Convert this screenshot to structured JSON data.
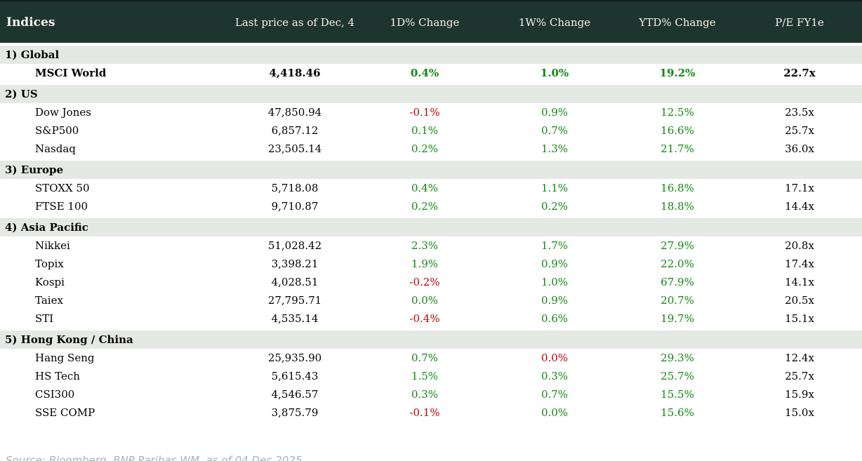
{
  "chart_data": {
    "type": "table",
    "title": "Indices",
    "columns": [
      "Indices",
      "Last price as of Dec, 4",
      "1D% Change",
      "1W% Change",
      "YTD% Change",
      "P/E FY1e"
    ],
    "groups": [
      {
        "title": "1) Global",
        "rows": [
          {
            "name": "MSCI World",
            "price": "4,418.46",
            "changes": [
              [
                "0.4%",
                "up"
              ],
              [
                "1.0%",
                "up"
              ],
              [
                "19.2%",
                "up"
              ]
            ],
            "pe": "22.7x",
            "bold": true
          }
        ]
      },
      {
        "title": "2) US",
        "rows": [
          {
            "name": "Dow Jones",
            "price": "47,850.94",
            "changes": [
              [
                "-0.1%",
                "down"
              ],
              [
                "0.9%",
                "up"
              ],
              [
                "12.5%",
                "up"
              ]
            ],
            "pe": "23.5x"
          },
          {
            "name": "S&P500",
            "price": "6,857.12",
            "changes": [
              [
                "0.1%",
                "up"
              ],
              [
                "0.7%",
                "up"
              ],
              [
                "16.6%",
                "up"
              ]
            ],
            "pe": "25.7x"
          },
          {
            "name": "Nasdaq",
            "price": "23,505.14",
            "changes": [
              [
                "0.2%",
                "up"
              ],
              [
                "1.3%",
                "up"
              ],
              [
                "21.7%",
                "up"
              ]
            ],
            "pe": "36.0x"
          }
        ]
      },
      {
        "title": "3) Europe",
        "rows": [
          {
            "name": "STOXX 50",
            "price": "5,718.08",
            "changes": [
              [
                "0.4%",
                "up"
              ],
              [
                "1.1%",
                "up"
              ],
              [
                "16.8%",
                "up"
              ]
            ],
            "pe": "17.1x"
          },
          {
            "name": "FTSE 100",
            "price": "9,710.87",
            "changes": [
              [
                "0.2%",
                "up"
              ],
              [
                "0.2%",
                "up"
              ],
              [
                "18.8%",
                "up"
              ]
            ],
            "pe": "14.4x"
          }
        ]
      },
      {
        "title": "4) Asia Pacific",
        "rows": [
          {
            "name": "Nikkei",
            "price": "51,028.42",
            "changes": [
              [
                "2.3%",
                "up"
              ],
              [
                "1.7%",
                "up"
              ],
              [
                "27.9%",
                "up"
              ]
            ],
            "pe": "20.8x"
          },
          {
            "name": "Topix",
            "price": "3,398.21",
            "changes": [
              [
                "1.9%",
                "up"
              ],
              [
                "0.9%",
                "up"
              ],
              [
                "22.0%",
                "up"
              ]
            ],
            "pe": "17.4x"
          },
          {
            "name": "Kospi",
            "price": "4,028.51",
            "changes": [
              [
                "-0.2%",
                "down"
              ],
              [
                "1.0%",
                "up"
              ],
              [
                "67.9%",
                "up"
              ]
            ],
            "pe": "14.1x"
          },
          {
            "name": "Taiex",
            "price": "27,795.71",
            "changes": [
              [
                "0.0%",
                "up"
              ],
              [
                "0.9%",
                "up"
              ],
              [
                "20.7%",
                "up"
              ]
            ],
            "pe": "20.5x"
          },
          {
            "name": "STI",
            "price": "4,535.14",
            "changes": [
              [
                "-0.4%",
                "down"
              ],
              [
                "0.6%",
                "up"
              ],
              [
                "19.7%",
                "up"
              ]
            ],
            "pe": "15.1x"
          }
        ]
      },
      {
        "title": "5) Hong Kong / China",
        "rows": [
          {
            "name": "Hang Seng",
            "price": "25,935.90",
            "changes": [
              [
                "0.7%",
                "up"
              ],
              [
                "0.0%",
                "down"
              ],
              [
                "29.3%",
                "up"
              ]
            ],
            "pe": "12.4x"
          },
          {
            "name": "HS Tech",
            "price": "5,615.43",
            "changes": [
              [
                "1.5%",
                "up"
              ],
              [
                "0.3%",
                "up"
              ],
              [
                "25.7%",
                "up"
              ]
            ],
            "pe": "25.7x"
          },
          {
            "name": "CSI300",
            "price": "4,546.57",
            "changes": [
              [
                "0.3%",
                "up"
              ],
              [
                "0.7%",
                "up"
              ],
              [
                "15.5%",
                "up"
              ]
            ],
            "pe": "15.9x"
          },
          {
            "name": "SSE COMP",
            "price": "3,875.79",
            "changes": [
              [
                "-0.1%",
                "down"
              ],
              [
                "0.0%",
                "up"
              ],
              [
                "15.6%",
                "up"
              ]
            ],
            "pe": "15.0x"
          }
        ]
      }
    ]
  },
  "source_note": "Source: Bloomberg, BNP Paribas WM, as of 04 Dec 2025.",
  "colors": {
    "header_bg": "#1d352e",
    "header_text": "#f4f0e6",
    "section_bg": "#e4e9e4",
    "positive": "#128712",
    "negative": "#c00000",
    "source_text": "#a9b0b9"
  }
}
